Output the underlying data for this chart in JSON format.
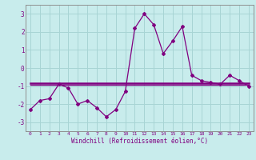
{
  "line1_x": [
    0,
    1,
    2,
    3,
    4,
    5,
    6,
    7,
    8,
    9,
    10,
    11,
    12,
    13,
    14,
    15,
    16,
    17,
    18,
    19,
    20,
    21,
    22,
    23
  ],
  "line1_y": [
    -2.3,
    -1.8,
    -1.7,
    -0.9,
    -1.1,
    -2.0,
    -1.8,
    -2.2,
    -2.7,
    -2.3,
    -1.3,
    2.2,
    3.0,
    2.4,
    0.8,
    1.5,
    2.3,
    -0.4,
    -0.7,
    -0.8,
    -0.9,
    -0.4,
    -0.7,
    -1.0
  ],
  "line2_x": [
    0,
    1,
    2,
    3,
    4,
    5,
    6,
    7,
    8,
    9,
    10,
    11,
    12,
    13,
    14,
    15,
    16,
    17,
    18,
    19,
    20,
    21,
    22,
    23
  ],
  "line2_y": [
    -0.85,
    -0.85,
    -0.85,
    -0.85,
    -0.85,
    -0.85,
    -0.85,
    -0.85,
    -0.85,
    -0.85,
    -0.85,
    -0.85,
    -0.85,
    -0.85,
    -0.85,
    -0.85,
    -0.85,
    -0.85,
    -0.85,
    -0.85,
    -0.85,
    -0.85,
    -0.85,
    -0.85
  ],
  "line3_x": [
    0,
    1,
    2,
    3,
    4,
    5,
    6,
    7,
    8,
    9,
    10,
    11,
    12,
    13,
    14,
    15,
    16,
    17,
    18,
    19,
    20,
    21,
    22,
    23
  ],
  "line3_y": [
    -0.95,
    -0.95,
    -0.95,
    -0.95,
    -0.95,
    -0.95,
    -0.95,
    -0.95,
    -0.95,
    -0.95,
    -0.95,
    -0.95,
    -0.95,
    -0.95,
    -0.95,
    -0.95,
    -0.95,
    -0.95,
    -0.95,
    -0.95,
    -0.95,
    -0.95,
    -0.95,
    -0.95
  ],
  "line_color": "#800080",
  "bg_color": "#c8ecec",
  "grid_color": "#a8d4d4",
  "xlabel": "Windchill (Refroidissement éolien,°C)",
  "ylim": [
    -3.5,
    3.5
  ],
  "xlim": [
    -0.5,
    23.5
  ],
  "yticks": [
    -3,
    -2,
    -1,
    0,
    1,
    2,
    3
  ],
  "xticks": [
    0,
    1,
    2,
    3,
    4,
    5,
    6,
    7,
    8,
    9,
    10,
    11,
    12,
    13,
    14,
    15,
    16,
    17,
    18,
    19,
    20,
    21,
    22,
    23
  ]
}
